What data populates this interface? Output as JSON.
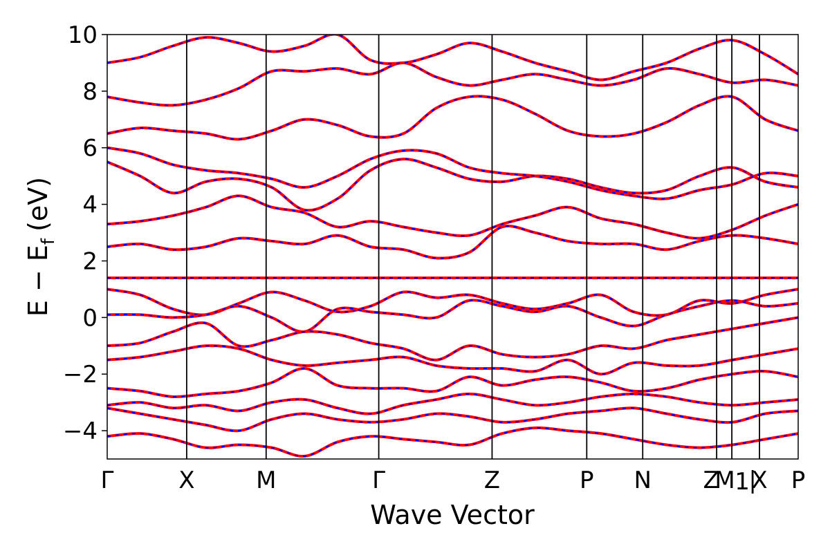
{
  "chart_data": {
    "type": "line",
    "xlabel": "Wave Vector",
    "ylabel_main": "E − E",
    "ylabel_sub": "f",
    "ylabel_unit": "(eV)",
    "ylim": [
      -5,
      10
    ],
    "y_ticks": [
      {
        "value": 10,
        "label": "10"
      },
      {
        "value": 8,
        "label": "8"
      },
      {
        "value": 6,
        "label": "6"
      },
      {
        "value": 4,
        "label": "4"
      },
      {
        "value": 2,
        "label": "2"
      },
      {
        "value": 0,
        "label": "0"
      },
      {
        "value": -2,
        "label": "−2"
      },
      {
        "value": -4,
        "label": "−4"
      }
    ],
    "k_points": [
      {
        "x": 0.0,
        "label": "Γ"
      },
      {
        "x": 0.115,
        "label": "X"
      },
      {
        "x": 0.23,
        "label": "M"
      },
      {
        "x": 0.393,
        "label": "Γ"
      },
      {
        "x": 0.557,
        "label": "Z"
      },
      {
        "x": 0.694,
        "label": "P"
      },
      {
        "x": 0.775,
        "label": "N"
      },
      {
        "x": 0.882,
        "label": "Z"
      },
      {
        "x": 0.904,
        "label": "M"
      },
      {
        "x": 0.905,
        "label": "1"
      },
      {
        "x": 0.906,
        "label": "|"
      },
      {
        "x": 0.944,
        "label": "X"
      },
      {
        "x": 1.0,
        "label": "P"
      }
    ],
    "xlim": [
      0,
      1
    ],
    "grid": false,
    "series": [
      {
        "color": "#ff0000",
        "style": "solid"
      },
      {
        "color": "#0000ff",
        "style": "dashed"
      }
    ],
    "flat_band_energy": 1.4,
    "bands": [
      [
        1.0,
        0.8,
        0.3,
        0.1,
        0.5,
        0.9,
        0.6,
        0.2,
        0.4,
        0.9,
        0.7,
        0.8,
        0.5,
        0.3,
        0.5,
        0.8,
        0.2,
        0.1,
        0.6,
        0.5,
        0.8,
        1.0
      ],
      [
        0.1,
        0.1,
        0.0,
        0.1,
        0.4,
        0.0,
        -0.5,
        0.3,
        0.2,
        0.1,
        0.0,
        0.6,
        0.4,
        0.2,
        0.4,
        0.0,
        -0.3,
        0.1,
        0.4,
        0.6,
        0.4,
        0.5
      ],
      [
        -1.0,
        -0.9,
        -0.5,
        -0.2,
        -1.0,
        -0.8,
        -0.5,
        -0.6,
        -0.9,
        -1.1,
        -1.5,
        -1.0,
        -1.3,
        -1.4,
        -1.3,
        -1.0,
        -1.1,
        -0.8,
        -0.6,
        -0.4,
        -0.2,
        0.0
      ],
      [
        -1.5,
        -1.4,
        -1.2,
        -1.0,
        -1.1,
        -1.5,
        -1.7,
        -1.6,
        -1.5,
        -1.4,
        -1.7,
        -1.8,
        -1.8,
        -1.9,
        -1.5,
        -2.0,
        -1.6,
        -1.7,
        -1.7,
        -1.5,
        -1.3,
        -1.1
      ],
      [
        -2.5,
        -2.6,
        -2.8,
        -2.7,
        -2.6,
        -2.3,
        -1.8,
        -2.4,
        -2.5,
        -2.5,
        -2.6,
        -2.1,
        -2.4,
        -2.2,
        -2.1,
        -2.3,
        -2.6,
        -2.5,
        -2.2,
        -2.0,
        -1.9,
        -2.1
      ],
      [
        -3.1,
        -3.0,
        -3.2,
        -3.1,
        -3.3,
        -3.0,
        -2.9,
        -3.2,
        -3.4,
        -3.1,
        -2.9,
        -2.7,
        -2.9,
        -3.1,
        -3.0,
        -2.8,
        -2.7,
        -2.8,
        -3.0,
        -3.1,
        -3.0,
        -2.9
      ],
      [
        -3.2,
        -3.4,
        -3.6,
        -3.8,
        -4.0,
        -3.6,
        -3.4,
        -3.6,
        -3.7,
        -3.6,
        -3.4,
        -3.5,
        -3.7,
        -3.6,
        -3.4,
        -3.3,
        -3.2,
        -3.4,
        -3.6,
        -3.7,
        -3.4,
        -3.3
      ],
      [
        -4.2,
        -4.1,
        -4.3,
        -4.6,
        -4.5,
        -4.6,
        -4.9,
        -4.4,
        -4.2,
        -4.3,
        -4.4,
        -4.5,
        -4.1,
        -3.9,
        -4.0,
        -4.1,
        -4.3,
        -4.5,
        -4.6,
        -4.5,
        -4.3,
        -4.1
      ],
      [
        2.5,
        2.6,
        2.4,
        2.5,
        2.8,
        2.7,
        2.6,
        2.9,
        2.5,
        2.4,
        2.1,
        2.3,
        3.2,
        3.0,
        2.7,
        2.6,
        2.6,
        2.4,
        2.7,
        2.9,
        2.8,
        2.6
      ],
      [
        3.3,
        3.4,
        3.6,
        3.9,
        4.3,
        3.9,
        3.7,
        3.2,
        3.4,
        3.2,
        3.0,
        2.9,
        3.3,
        3.6,
        3.9,
        3.5,
        3.3,
        3.0,
        2.8,
        3.1,
        3.6,
        4.0
      ],
      [
        5.5,
        5.0,
        4.4,
        4.8,
        4.9,
        4.6,
        3.8,
        4.2,
        5.2,
        5.6,
        5.3,
        4.9,
        4.8,
        5.0,
        4.9,
        4.6,
        4.4,
        4.5,
        5.0,
        5.3,
        4.8,
        4.6
      ],
      [
        6.0,
        5.8,
        5.4,
        5.2,
        5.1,
        4.9,
        4.6,
        5.0,
        5.6,
        5.9,
        5.8,
        5.3,
        5.1,
        5.0,
        4.8,
        4.5,
        4.3,
        4.2,
        4.5,
        4.7,
        5.1,
        5.0
      ],
      [
        6.5,
        6.7,
        6.6,
        6.5,
        6.3,
        6.6,
        7.0,
        6.8,
        6.4,
        6.5,
        7.4,
        7.8,
        7.7,
        7.2,
        6.6,
        6.4,
        6.5,
        6.9,
        7.5,
        7.8,
        7.0,
        6.6
      ],
      [
        7.8,
        7.6,
        7.5,
        7.7,
        8.1,
        8.7,
        8.7,
        8.8,
        8.6,
        9.0,
        8.5,
        8.2,
        8.4,
        8.6,
        8.4,
        8.2,
        8.4,
        8.8,
        8.6,
        8.3,
        8.4,
        8.2
      ],
      [
        9.0,
        9.2,
        9.6,
        9.9,
        9.7,
        9.4,
        9.6,
        10.0,
        9.1,
        9.0,
        9.3,
        9.7,
        9.4,
        9.0,
        8.7,
        8.4,
        8.7,
        9.0,
        9.5,
        9.8,
        9.3,
        8.6
      ]
    ]
  }
}
